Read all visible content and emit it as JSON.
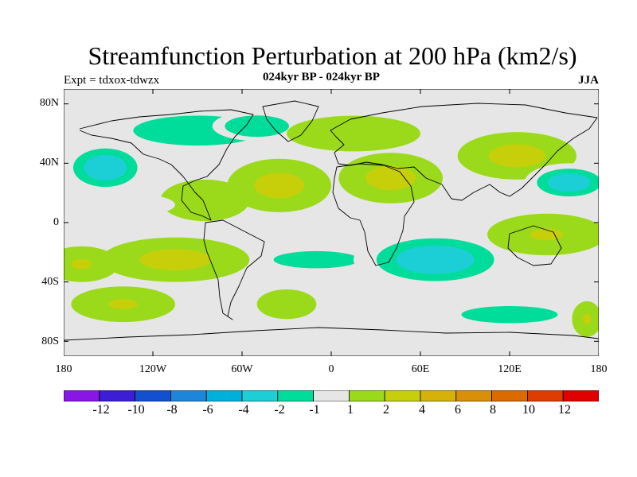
{
  "title": "Streamfunction Perturbation at 200 hPa (km2/s)",
  "subtitle": "024kyr BP - 024kyr BP",
  "left_string": "Expt = tdxox-tdwzx",
  "right_string": "JJA",
  "colors": {
    "neutral": "#e6e6e6",
    "neg": [
      "#8a16e6",
      "#3b1ed6",
      "#1250d0",
      "#1e86d8",
      "#00b0dc",
      "#1ccfd6",
      "#00dc9a"
    ],
    "pos": [
      "#9ada1a",
      "#c6cf0a",
      "#d6b208",
      "#d99008",
      "#db6a00",
      "#de3c00",
      "#e00000"
    ]
  },
  "chart_data": {
    "type": "heatmap",
    "projection": "cylindrical-equidistant",
    "x_range": [
      -180,
      180
    ],
    "y_range": [
      -90,
      90
    ],
    "x_ticks": [
      "180",
      "120W",
      "60W",
      "0",
      "60E",
      "120E",
      "180"
    ],
    "y_ticks": [
      "80N",
      "40N",
      "0",
      "40S",
      "80S"
    ],
    "contour_levels": [
      -12,
      -10,
      -8,
      -6,
      -4,
      -2,
      -1,
      1,
      2,
      4,
      6,
      8,
      10,
      12
    ],
    "colorbar_labels": [
      "-12",
      "-10",
      "-8",
      "-6",
      "-4",
      "-2",
      "-1",
      "1",
      "2",
      "4",
      "6",
      "8",
      "10",
      "12"
    ],
    "features": [
      {
        "lon": -152,
        "lat": 37,
        "rx": 30,
        "ry": 18,
        "level": -3
      },
      {
        "lon": -168,
        "lat": -28,
        "rx": 25,
        "ry": 12,
        "level": 2
      },
      {
        "lon": -105,
        "lat": -25,
        "rx": 50,
        "ry": 15,
        "level": 3
      },
      {
        "lon": -85,
        "lat": 15,
        "rx": 30,
        "ry": 14,
        "level": 1.5
      },
      {
        "lon": -35,
        "lat": 25,
        "rx": 35,
        "ry": 18,
        "level": 2.5
      },
      {
        "lon": -140,
        "lat": 12,
        "rx": 35,
        "ry": 8,
        "level": -1
      },
      {
        "lon": -90,
        "lat": 62,
        "rx": 60,
        "ry": 14,
        "level": -1.5
      },
      {
        "lon": -50,
        "lat": 65,
        "rx": 30,
        "ry": 10,
        "level": -2
      },
      {
        "lon": -10,
        "lat": -25,
        "rx": 40,
        "ry": 8,
        "level": -1.2
      },
      {
        "lon": -140,
        "lat": -55,
        "rx": 35,
        "ry": 12,
        "level": 2
      },
      {
        "lon": -30,
        "lat": -55,
        "rx": 20,
        "ry": 10,
        "level": 1.5
      },
      {
        "lon": 40,
        "lat": 30,
        "rx": 35,
        "ry": 17,
        "level": 3
      },
      {
        "lon": 15,
        "lat": 60,
        "rx": 45,
        "ry": 12,
        "level": 1.5
      },
      {
        "lon": 125,
        "lat": 45,
        "rx": 40,
        "ry": 16,
        "level": 2.5
      },
      {
        "lon": 70,
        "lat": -25,
        "rx": 55,
        "ry": 20,
        "level": -4
      },
      {
        "lon": 160,
        "lat": 27,
        "rx": 30,
        "ry": 13,
        "level": -3
      },
      {
        "lon": 145,
        "lat": -8,
        "rx": 40,
        "ry": 14,
        "level": 2
      },
      {
        "lon": 120,
        "lat": -62,
        "rx": 45,
        "ry": 8,
        "level": -1.2
      },
      {
        "lon": 172,
        "lat": -65,
        "rx": 10,
        "ry": 12,
        "level": 2
      }
    ]
  }
}
